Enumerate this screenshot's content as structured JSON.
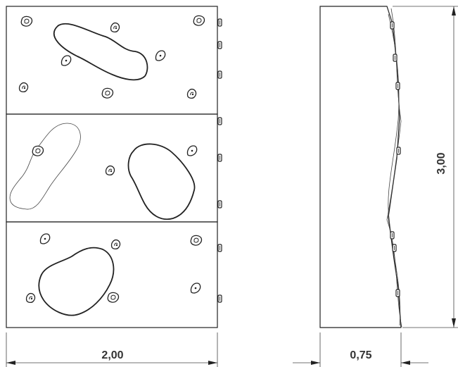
{
  "front_view": {
    "panels": 3,
    "width_label": "2,00",
    "hold_icon": "climbing-hold-icon",
    "volume_icon": "climbing-volume-icon"
  },
  "side_view": {
    "depth_label": "0,75",
    "height_label": "3,00"
  }
}
